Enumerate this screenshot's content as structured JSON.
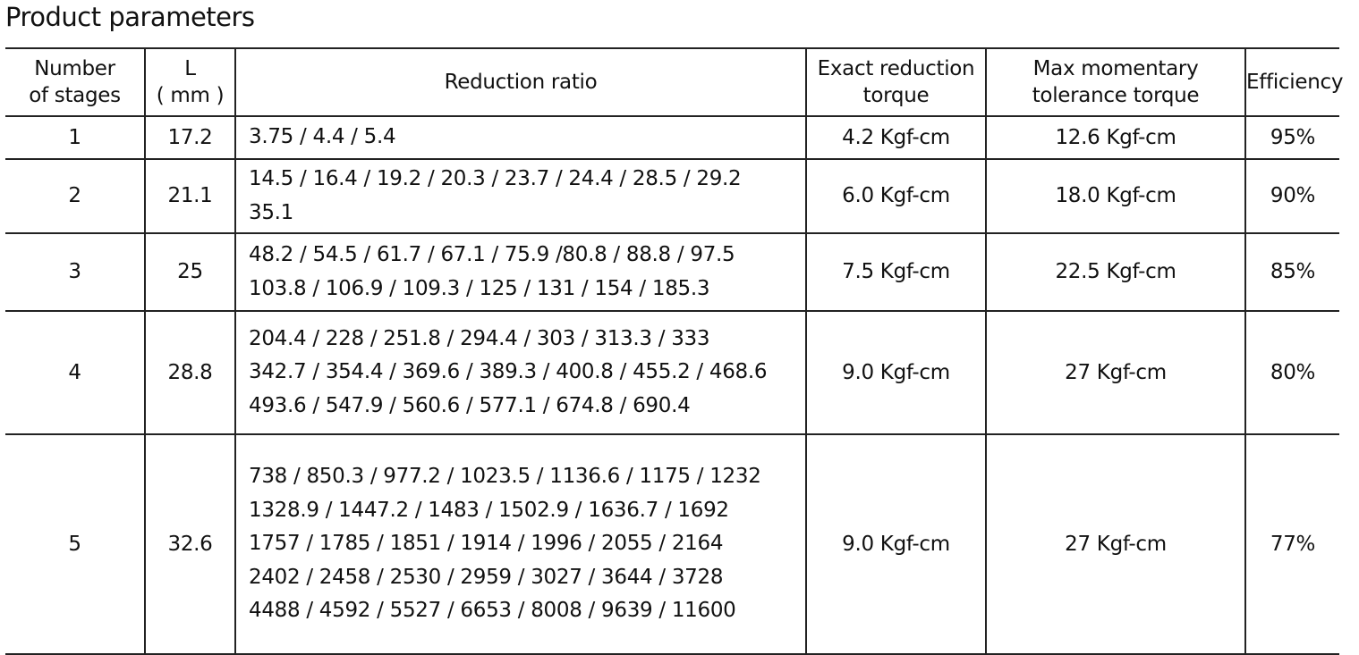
{
  "title": "Product parameters",
  "headers": {
    "stages": [
      "Number",
      "of stages"
    ],
    "length": [
      "L",
      "( mm )"
    ],
    "ratio": "Reduction ratio",
    "exact_torque": [
      "Exact reduction",
      "torque"
    ],
    "max_torque": [
      "Max momentary",
      "tolerance torque"
    ],
    "efficiency": "Efficiency"
  },
  "rows": [
    {
      "stages": "1",
      "length": "17.2",
      "ratio": [
        "3.75 / 4.4 / 5.4"
      ],
      "exact_torque": "4.2 Kgf-cm",
      "max_torque": "12.6 Kgf-cm",
      "efficiency": "95%"
    },
    {
      "stages": "2",
      "length": "21.1",
      "ratio": [
        "14.5 / 16.4 / 19.2 / 20.3 / 23.7 / 24.4 / 28.5 / 29.2",
        "35.1"
      ],
      "exact_torque": "6.0 Kgf-cm",
      "max_torque": "18.0 Kgf-cm",
      "efficiency": "90%"
    },
    {
      "stages": "3",
      "length": "25",
      "ratio": [
        "48.2 / 54.5 / 61.7 / 67.1 / 75.9 /80.8 / 88.8 / 97.5",
        "103.8 / 106.9 / 109.3 / 125 / 131 / 154 / 185.3"
      ],
      "exact_torque": "7.5 Kgf-cm",
      "max_torque": "22.5 Kgf-cm",
      "efficiency": "85%"
    },
    {
      "stages": "4",
      "length": "28.8",
      "ratio": [
        "204.4 / 228 / 251.8 / 294.4 / 303 / 313.3 / 333",
        "342.7 / 354.4 / 369.6 / 389.3 / 400.8 / 455.2 / 468.6",
        "493.6 / 547.9 / 560.6 / 577.1 / 674.8 / 690.4"
      ],
      "exact_torque": "9.0 Kgf-cm",
      "max_torque": "27 Kgf-cm",
      "efficiency": "80%"
    },
    {
      "stages": "5",
      "length": "32.6",
      "ratio": [
        "738 / 850.3 / 977.2 / 1023.5 / 1136.6 / 1175 / 1232",
        "1328.9 / 1447.2 / 1483 / 1502.9 / 1636.7 / 1692",
        "1757 / 1785 / 1851 / 1914 / 1996 / 2055 / 2164",
        "2402 / 2458 / 2530 / 2959 / 3027 / 3644 / 3728",
        "4488 / 4592 / 5527 / 6653 / 8008 / 9639 / 11600"
      ],
      "exact_torque": "9.0 Kgf-cm",
      "max_torque": "27 Kgf-cm",
      "efficiency": "77%"
    }
  ]
}
